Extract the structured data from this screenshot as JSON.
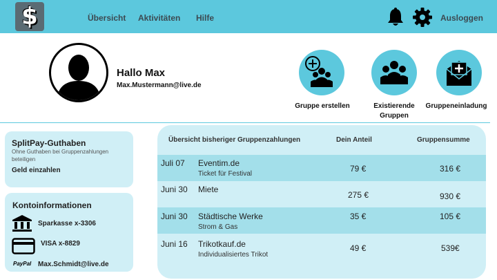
{
  "header": {
    "logo_glyph": "$",
    "nav": [
      "Übersicht",
      "Aktivitäten",
      "Hilfe"
    ],
    "logout_label": "Ausloggen"
  },
  "profile": {
    "greeting": "Hallo Max",
    "email": "Max.Mustermann@live.de"
  },
  "groups": {
    "create_label": "Gruppe erstellen",
    "existing_label_line1": "Existierende",
    "existing_label_line2": "Gruppen",
    "invite_label": "Gruppeneinladung"
  },
  "balance": {
    "title": "SplitPay-Guthaben",
    "note": "Ohne Guthaben bei Gruppenzahlungen beteiligen",
    "deposit_label": "Geld einzahlen"
  },
  "account": {
    "title": "Kontoinformationen",
    "bank": "Sparkasse x-3306",
    "card": "VISA x-8829",
    "paypal_logo": "PayPal",
    "paypal": "Max.Schmidt@live.de"
  },
  "payments": {
    "columns": [
      "Übersicht bisheriger Gruppenzahlungen",
      "Dein Anteil",
      "Gruppensumme"
    ],
    "rows": [
      {
        "date": "Juli 07",
        "name": "Eventim.de",
        "detail": "Ticket für Festival",
        "share": "79 €",
        "total": "316 €"
      },
      {
        "date": "Juni 30",
        "name": "Miete",
        "detail": "",
        "share": "275 €",
        "total": "930 €"
      },
      {
        "date": "Juni 30",
        "name": "Städtische Werke",
        "detail": "Strom & Gas",
        "share": "35 €",
        "total": "105 €"
      },
      {
        "date": "Juni 16",
        "name": "Trikotkauf.de",
        "detail": "Individualisiertes Trikot",
        "share": "49 €",
        "total": "539€"
      }
    ]
  },
  "colors": {
    "accent": "#5cc8dd",
    "card": "#d0eff6",
    "row_highlight": "#a3dfea"
  }
}
